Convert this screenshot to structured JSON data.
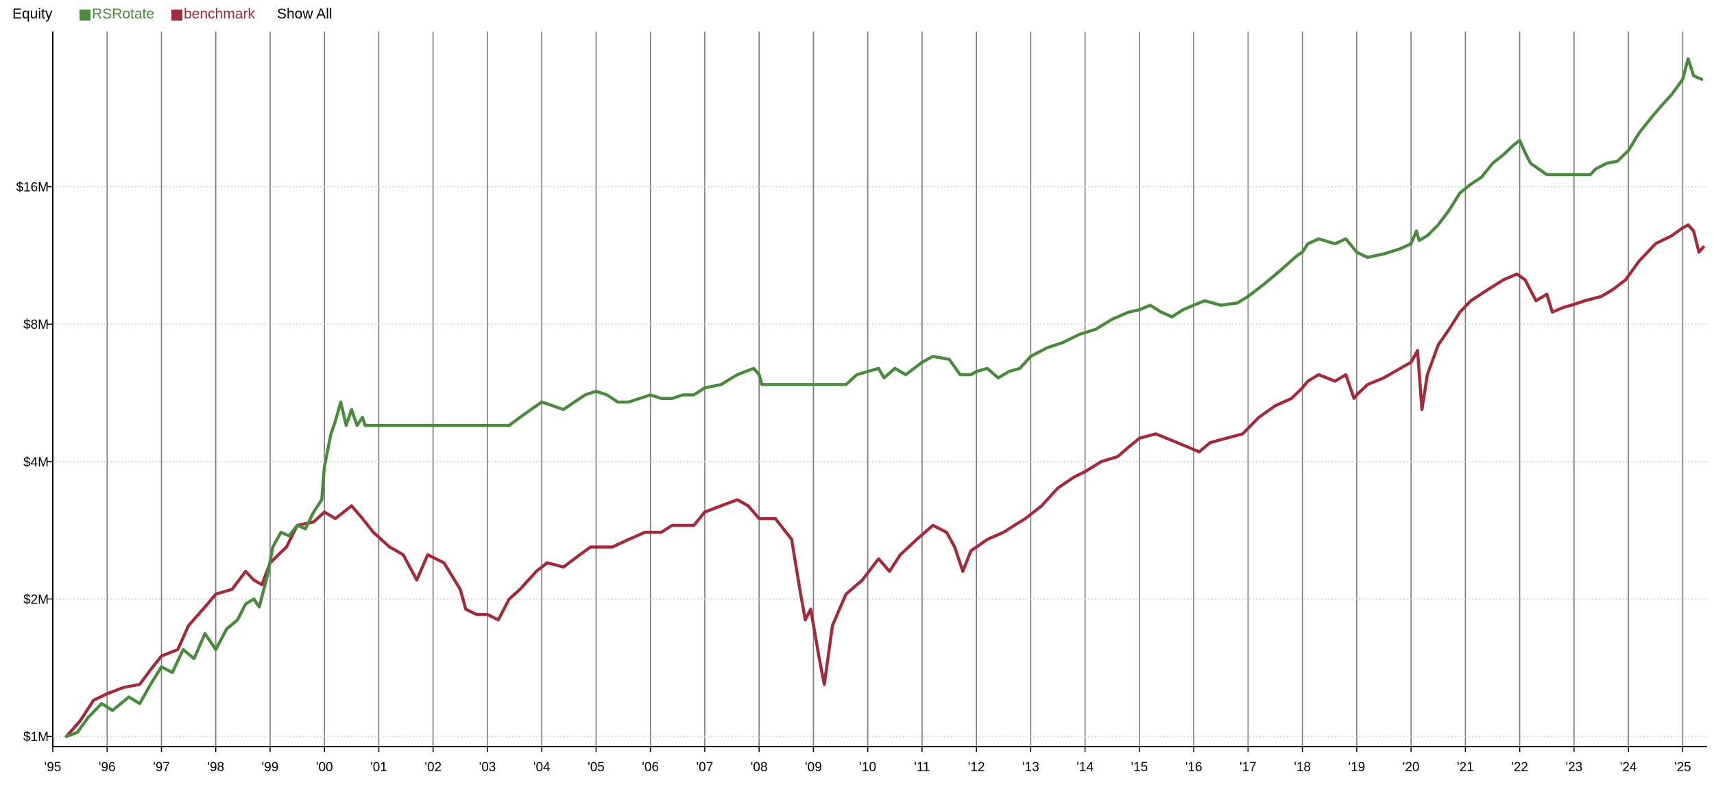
{
  "legend": {
    "title": "Equity",
    "show_all_label": "Show All"
  },
  "colors": {
    "rsrotate": "#4a8a3c",
    "benchmark": "#a32a3a",
    "vgrid": "#7a7a7a",
    "hgrid": "#c8c8c8",
    "axis": "#000000"
  },
  "chart_data": {
    "type": "line",
    "title": "Equity",
    "y_scale": "log",
    "ylim": [
      0.95,
      35
    ],
    "xlim": [
      1995.0,
      2025.45
    ],
    "x_tick_values": [
      1995,
      1996,
      1997,
      1998,
      1999,
      2000,
      2001,
      2002,
      2003,
      2004,
      2005,
      2006,
      2007,
      2008,
      2009,
      2010,
      2011,
      2012,
      2013,
      2014,
      2015,
      2016,
      2017,
      2018,
      2019,
      2020,
      2021,
      2022,
      2023,
      2024,
      2025
    ],
    "x_tick_labels": [
      "'95",
      "'96",
      "'97",
      "'98",
      "'99",
      "'00",
      "'01",
      "'02",
      "'03",
      "'04",
      "'05",
      "'06",
      "'07",
      "'08",
      "'09",
      "'10",
      "'11",
      "'12",
      "'13",
      "'14",
      "'15",
      "'16",
      "'17",
      "'18",
      "'19",
      "'20",
      "'21",
      "'22",
      "'23",
      "'24",
      "'25"
    ],
    "y_tick_values": [
      1,
      2,
      4,
      8,
      16
    ],
    "y_tick_labels": [
      "$1M",
      "$2M",
      "$4M",
      "$8M",
      "$16M"
    ],
    "vertical_grid": true,
    "horizontal_grid": "dotted",
    "legend_position": "top-left",
    "series": [
      {
        "name": "RSRotate",
        "color": "#4a8a3c",
        "x": [
          1995.25,
          1995.45,
          1995.65,
          1995.9,
          1996.1,
          1996.4,
          1996.6,
          1996.8,
          1997.0,
          1997.2,
          1997.4,
          1997.6,
          1997.8,
          1998.0,
          1998.2,
          1998.4,
          1998.55,
          1998.7,
          1998.8,
          1998.95,
          1999.05,
          1999.2,
          1999.35,
          1999.5,
          1999.65,
          1999.8,
          1999.95,
          2000.0,
          2000.12,
          2000.2,
          2000.3,
          2000.4,
          2000.5,
          2000.6,
          2000.7,
          2000.75,
          2001.0,
          2002.0,
          2003.0,
          2003.4,
          2003.6,
          2003.8,
          2004.0,
          2004.2,
          2004.4,
          2004.6,
          2004.8,
          2005.0,
          2005.2,
          2005.4,
          2005.6,
          2006.0,
          2006.2,
          2006.4,
          2006.6,
          2006.8,
          2007.0,
          2007.3,
          2007.6,
          2007.9,
          2008.0,
          2008.05,
          2008.5,
          2009.0,
          2009.6,
          2009.8,
          2010.0,
          2010.2,
          2010.3,
          2010.5,
          2010.7,
          2011.0,
          2011.2,
          2011.5,
          2011.7,
          2011.9,
          2012.0,
          2012.2,
          2012.4,
          2012.6,
          2012.8,
          2013.0,
          2013.3,
          2013.6,
          2013.9,
          2014.2,
          2014.5,
          2014.8,
          2015.0,
          2015.2,
          2015.4,
          2015.6,
          2015.8,
          2016.0,
          2016.2,
          2016.5,
          2016.8,
          2017.0,
          2017.3,
          2017.6,
          2017.9,
          2018.0,
          2018.1,
          2018.3,
          2018.6,
          2018.8,
          2019.0,
          2019.2,
          2019.5,
          2019.8,
          2020.0,
          2020.1,
          2020.15,
          2020.3,
          2020.5,
          2020.7,
          2020.9,
          2021.1,
          2021.3,
          2021.5,
          2021.7,
          2021.9,
          2022.0,
          2022.1,
          2022.2,
          2022.5,
          2023.0,
          2023.3,
          2023.4,
          2023.6,
          2023.8,
          2024.0,
          2024.2,
          2024.4,
          2024.6,
          2024.8,
          2025.0,
          2025.1,
          2025.2,
          2025.35
        ],
        "values": [
          1.0,
          1.02,
          1.1,
          1.18,
          1.14,
          1.22,
          1.18,
          1.3,
          1.42,
          1.38,
          1.55,
          1.48,
          1.68,
          1.55,
          1.72,
          1.8,
          1.95,
          2.0,
          1.92,
          2.25,
          2.6,
          2.8,
          2.75,
          2.9,
          2.85,
          3.1,
          3.3,
          3.9,
          4.6,
          4.9,
          5.4,
          4.8,
          5.2,
          4.8,
          5.0,
          4.8,
          4.8,
          4.8,
          4.8,
          4.8,
          5.0,
          5.2,
          5.4,
          5.3,
          5.2,
          5.4,
          5.6,
          5.7,
          5.6,
          5.4,
          5.4,
          5.6,
          5.5,
          5.5,
          5.6,
          5.6,
          5.8,
          5.9,
          6.2,
          6.4,
          6.2,
          5.9,
          5.9,
          5.9,
          5.9,
          6.2,
          6.3,
          6.4,
          6.1,
          6.4,
          6.2,
          6.6,
          6.8,
          6.7,
          6.2,
          6.2,
          6.3,
          6.4,
          6.1,
          6.3,
          6.4,
          6.8,
          7.1,
          7.3,
          7.6,
          7.8,
          8.2,
          8.5,
          8.6,
          8.8,
          8.5,
          8.3,
          8.6,
          8.8,
          9.0,
          8.8,
          8.9,
          9.2,
          9.8,
          10.5,
          11.3,
          11.5,
          12.0,
          12.3,
          12.0,
          12.3,
          11.5,
          11.2,
          11.4,
          11.7,
          12.0,
          12.8,
          12.2,
          12.5,
          13.2,
          14.2,
          15.5,
          16.2,
          16.8,
          18.0,
          18.8,
          19.8,
          20.2,
          19.0,
          18.0,
          17.0,
          17.0,
          17.0,
          17.5,
          18.0,
          18.2,
          19.2,
          21.0,
          22.5,
          24.0,
          25.5,
          27.5,
          30.5,
          28.0,
          27.5
        ],
        "y_unit": "$M"
      },
      {
        "name": "benchmark",
        "color": "#a32a3a",
        "x": [
          1995.25,
          1995.5,
          1995.75,
          1996.0,
          1996.3,
          1996.6,
          1996.8,
          1997.0,
          1997.3,
          1997.5,
          1997.8,
          1998.0,
          1998.3,
          1998.55,
          1998.7,
          1998.85,
          1999.0,
          1999.3,
          1999.5,
          1999.8,
          2000.0,
          2000.2,
          2000.5,
          2000.7,
          2000.9,
          2001.2,
          2001.45,
          2001.7,
          2001.9,
          2002.2,
          2002.5,
          2002.6,
          2002.8,
          2003.0,
          2003.2,
          2003.4,
          2003.6,
          2003.9,
          2004.1,
          2004.4,
          2004.7,
          2004.9,
          2005.3,
          2005.6,
          2005.9,
          2006.2,
          2006.4,
          2006.8,
          2007.0,
          2007.3,
          2007.6,
          2007.8,
          2008.0,
          2008.3,
          2008.6,
          2008.75,
          2008.85,
          2008.95,
          2009.1,
          2009.2,
          2009.35,
          2009.6,
          2009.9,
          2010.2,
          2010.4,
          2010.6,
          2010.9,
          2011.2,
          2011.45,
          2011.6,
          2011.75,
          2011.9,
          2012.2,
          2012.5,
          2012.7,
          2012.9,
          2013.2,
          2013.5,
          2013.8,
          2014.0,
          2014.3,
          2014.6,
          2014.8,
          2015.0,
          2015.3,
          2015.5,
          2015.7,
          2015.9,
          2016.1,
          2016.3,
          2016.6,
          2016.9,
          2017.2,
          2017.5,
          2017.8,
          2018.0,
          2018.1,
          2018.3,
          2018.6,
          2018.8,
          2018.95,
          2019.0,
          2019.2,
          2019.5,
          2019.8,
          2020.0,
          2020.12,
          2020.2,
          2020.3,
          2020.5,
          2020.7,
          2020.9,
          2021.1,
          2021.4,
          2021.7,
          2021.95,
          2022.1,
          2022.3,
          2022.5,
          2022.6,
          2022.8,
          2022.95,
          2023.2,
          2023.5,
          2023.7,
          2023.95,
          2024.2,
          2024.5,
          2024.8,
          2025.0,
          2025.1,
          2025.2,
          2025.3,
          2025.38
        ],
        "values": [
          1.0,
          1.08,
          1.2,
          1.24,
          1.28,
          1.3,
          1.4,
          1.5,
          1.55,
          1.75,
          1.92,
          2.05,
          2.1,
          2.3,
          2.2,
          2.15,
          2.4,
          2.6,
          2.9,
          2.95,
          3.1,
          3.0,
          3.2,
          3.0,
          2.8,
          2.6,
          2.5,
          2.2,
          2.5,
          2.4,
          2.1,
          1.9,
          1.85,
          1.85,
          1.8,
          2.0,
          2.1,
          2.3,
          2.4,
          2.35,
          2.5,
          2.6,
          2.6,
          2.7,
          2.8,
          2.8,
          2.9,
          2.9,
          3.1,
          3.2,
          3.3,
          3.2,
          3.0,
          3.0,
          2.7,
          2.1,
          1.8,
          1.9,
          1.5,
          1.3,
          1.75,
          2.05,
          2.2,
          2.45,
          2.3,
          2.5,
          2.7,
          2.9,
          2.8,
          2.6,
          2.3,
          2.55,
          2.7,
          2.8,
          2.9,
          3.0,
          3.2,
          3.5,
          3.7,
          3.8,
          4.0,
          4.1,
          4.3,
          4.5,
          4.6,
          4.5,
          4.4,
          4.3,
          4.2,
          4.4,
          4.5,
          4.6,
          5.0,
          5.3,
          5.5,
          5.8,
          6.0,
          6.2,
          6.0,
          6.2,
          5.5,
          5.6,
          5.9,
          6.1,
          6.4,
          6.6,
          7.0,
          5.2,
          6.2,
          7.2,
          7.8,
          8.5,
          9.0,
          9.5,
          10.0,
          10.3,
          10.0,
          9.0,
          9.3,
          8.5,
          8.7,
          8.8,
          9.0,
          9.2,
          9.5,
          10.0,
          11.0,
          12.0,
          12.5,
          13.0,
          13.2,
          12.8,
          11.5,
          11.8
        ],
        "y_unit": "$M"
      }
    ]
  }
}
